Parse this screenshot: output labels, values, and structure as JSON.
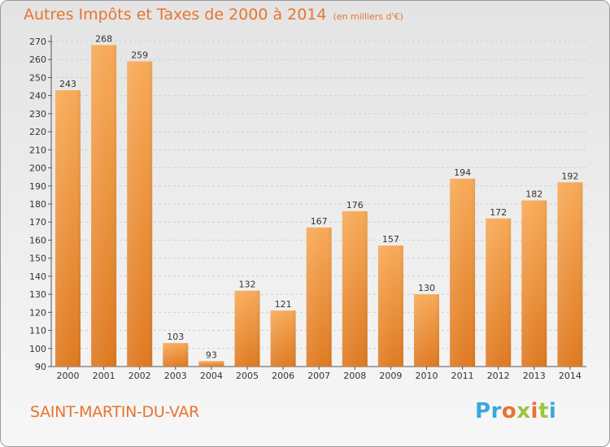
{
  "title": {
    "main": "Autres Impôts et Taxes de 2000 à 2014",
    "unit": "(en milliers d'€)"
  },
  "commune": "SAINT-MARTIN-DU-VAR",
  "logo": {
    "text": "Proxiti",
    "letter_colors": [
      "#3aa7d9",
      "#3aa7d9",
      "#e8742e",
      "#9cc63b",
      "#e8742e",
      "#9cc63b",
      "#3aa7d9"
    ]
  },
  "colors": {
    "bar_light": "#f7aa58",
    "bar_dark": "#df7a22",
    "accent": "#e8742e",
    "grid": "#cfcfcf"
  },
  "chart_data": {
    "type": "bar",
    "title": "Autres Impôts et Taxes de 2000 à 2014",
    "subtitle": "(en milliers d'€)",
    "categories": [
      "2000",
      "2001",
      "2002",
      "2003",
      "2004",
      "2005",
      "2006",
      "2007",
      "2008",
      "2009",
      "2010",
      "2011",
      "2012",
      "2013",
      "2014"
    ],
    "values": [
      243,
      268,
      259,
      103,
      93,
      132,
      121,
      167,
      176,
      157,
      130,
      194,
      172,
      182,
      192
    ],
    "ylim": [
      90,
      270
    ],
    "yticks": [
      90,
      100,
      110,
      120,
      130,
      140,
      150,
      160,
      170,
      180,
      190,
      200,
      210,
      220,
      230,
      240,
      250,
      260,
      270
    ],
    "grid": true,
    "xlabel": "",
    "ylabel": ""
  }
}
